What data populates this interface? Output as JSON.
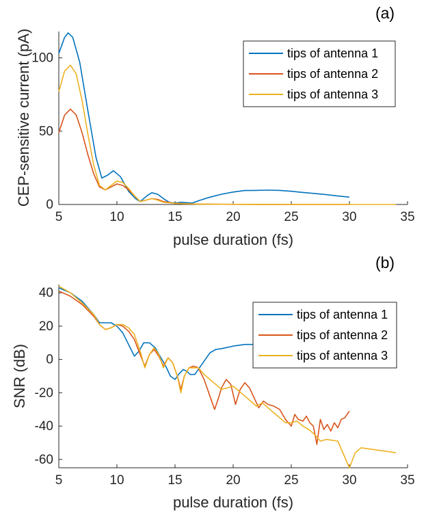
{
  "chart_data": [
    {
      "type": "line",
      "panel_label": "(a)",
      "title": "",
      "xlabel": "pulse duration (fs)",
      "ylabel": "CEP-sensitive current (pA)",
      "xlim": [
        5,
        35
      ],
      "ylim": [
        0,
        118
      ],
      "xticks": [
        5,
        10,
        15,
        20,
        25,
        30,
        35
      ],
      "yticks": [
        0,
        50,
        100
      ],
      "grid": false,
      "legend_position": "top-right",
      "series": [
        {
          "name": "tips of antenna 1",
          "color": "#0072BD",
          "x": [
            5.0,
            5.5,
            5.8,
            6.2,
            6.8,
            7.5,
            8.2,
            8.7,
            9.2,
            9.7,
            10.3,
            11.0,
            11.6,
            12.0,
            12.6,
            13.0,
            13.5,
            14.0,
            14.5,
            15.0,
            15.5,
            16.0,
            16.5,
            17.0,
            18.0,
            19.0,
            20.0,
            21.0,
            22.0,
            23.0,
            24.0,
            25.0,
            26.0,
            27.0,
            28.0,
            29.0,
            30.0
          ],
          "y": [
            103,
            114,
            117,
            114,
            97,
            64,
            32,
            18,
            20,
            23,
            19,
            9,
            4,
            2,
            6,
            8,
            7,
            4,
            1.5,
            1,
            1.5,
            1.2,
            1,
            2.5,
            5,
            7,
            8.5,
            9.5,
            9.6,
            9.8,
            9.6,
            9,
            8.2,
            7.5,
            6.7,
            5.8,
            5
          ]
        },
        {
          "name": "tips of antenna 2",
          "color": "#D95319",
          "x": [
            5.0,
            5.5,
            6.0,
            6.5,
            7.0,
            7.5,
            8.0,
            8.5,
            9.0,
            9.5,
            10.0,
            10.5,
            11.0,
            11.5,
            12.0,
            12.5,
            13.0,
            13.5,
            14.0,
            15.0,
            16.0,
            17.0,
            18.0,
            20.0,
            25.0,
            30.0
          ],
          "y": [
            49,
            61,
            65,
            61,
            49,
            34,
            21,
            12,
            10,
            12,
            14,
            13,
            10,
            6,
            2,
            3,
            4,
            3.5,
            2,
            0.8,
            0.5,
            0.3,
            0.2,
            0.1,
            0,
            0
          ]
        },
        {
          "name": "tips of antenna 3",
          "color": "#EDB120",
          "x": [
            5.0,
            5.5,
            6.0,
            6.5,
            7.0,
            7.5,
            8.0,
            8.5,
            9.0,
            9.5,
            10.0,
            10.5,
            11.0,
            11.5,
            12.0,
            12.5,
            13.0,
            13.5,
            14.0,
            15.0,
            16.0,
            17.0,
            18.0,
            20.0,
            25.0,
            30.0,
            34.0
          ],
          "y": [
            77,
            91,
            95,
            89,
            71,
            48,
            27,
            13,
            10,
            13,
            16,
            15,
            11,
            6,
            2,
            3,
            4,
            3,
            1.5,
            0.8,
            0.4,
            0.3,
            0.2,
            0.1,
            0,
            0,
            0
          ]
        }
      ]
    },
    {
      "type": "line",
      "panel_label": "(b)",
      "title": "",
      "xlabel": "pulse duration (fs)",
      "ylabel": "SNR (dB)",
      "xlim": [
        5,
        35
      ],
      "ylim": [
        -65,
        45
      ],
      "xticks": [
        5,
        10,
        15,
        20,
        25,
        30,
        35
      ],
      "yticks": [
        -60,
        -40,
        -20,
        0,
        20,
        40
      ],
      "grid": false,
      "legend_position": "top-right",
      "series": [
        {
          "name": "tips of antenna 1",
          "color": "#0072BD",
          "x": [
            5.0,
            6.0,
            7.0,
            8.0,
            8.5,
            9.0,
            9.5,
            10.0,
            10.5,
            11.0,
            11.5,
            11.9,
            12.3,
            12.8,
            13.3,
            13.7,
            14.2,
            14.6,
            15.0,
            15.3,
            15.7,
            16.0,
            16.3,
            16.7,
            17.0,
            17.5,
            18.0,
            18.5,
            19.0,
            20.0,
            21.0,
            22.0,
            23.0,
            24.0,
            25.0,
            26.0,
            27.0,
            28.0,
            29.0,
            30.0
          ],
          "y": [
            43,
            40,
            35,
            27,
            22,
            22,
            22,
            20,
            16,
            9,
            2,
            5,
            10,
            10,
            7,
            2,
            -4,
            -10,
            -12,
            -9,
            -6,
            -7,
            -9,
            -9,
            -6,
            -1,
            4,
            6,
            6.5,
            8,
            9,
            9,
            8.5,
            8,
            7.5,
            6.5,
            5,
            4,
            2.5,
            0.5
          ]
        },
        {
          "name": "tips of antenna 2",
          "color": "#D95319",
          "x": [
            5.0,
            6.0,
            7.0,
            8.0,
            8.5,
            9.0,
            9.5,
            10.0,
            10.5,
            11.0,
            11.5,
            12.0,
            12.4,
            12.8,
            13.2,
            13.6,
            14.0,
            14.4,
            14.8,
            15.2,
            15.5,
            15.8,
            16.2,
            16.6,
            17.0,
            17.5,
            18.0,
            18.4,
            18.7,
            19.0,
            19.4,
            19.8,
            20.2,
            20.6,
            21.0,
            21.4,
            21.8,
            22.2,
            22.6,
            23.0,
            23.5,
            24.0,
            24.5,
            25.0,
            25.3,
            25.6,
            26.0,
            26.3,
            26.6,
            26.9,
            27.2,
            27.5,
            27.8,
            28.1,
            28.4,
            28.7,
            29.0,
            29.3,
            29.6,
            30.0
          ],
          "y": [
            41,
            38,
            33,
            26,
            21,
            18,
            19,
            21,
            20,
            17,
            12,
            3,
            -4,
            3,
            6,
            2,
            -4,
            1,
            -2,
            -10,
            -18,
            -10,
            -5,
            -4,
            -5,
            -12,
            -22,
            -30,
            -24,
            -17,
            -12,
            -15,
            -27,
            -18,
            -14,
            -17,
            -23,
            -29,
            -25,
            -27,
            -28,
            -30,
            -36,
            -40,
            -33,
            -36,
            -37,
            -34,
            -38,
            -40,
            -51,
            -36,
            -42,
            -39,
            -43,
            -38,
            -41,
            -36,
            -35,
            -31
          ]
        },
        {
          "name": "tips of antenna 3",
          "color": "#EDB120",
          "x": [
            5.0,
            6.0,
            7.0,
            8.0,
            8.5,
            9.0,
            9.5,
            10.0,
            10.5,
            11.0,
            11.5,
            12.0,
            12.4,
            12.8,
            13.2,
            13.6,
            14.0,
            14.4,
            14.8,
            15.2,
            15.5,
            15.8,
            16.2,
            16.6,
            17.0,
            17.5,
            18.0,
            18.5,
            19.0,
            19.5,
            20.0,
            20.5,
            21.0,
            21.5,
            22.0,
            22.5,
            23.0,
            23.5,
            24.0,
            24.5,
            25.0,
            25.5,
            26.0,
            26.5,
            27.0,
            27.5,
            28.0,
            29.0,
            30.0,
            30.5,
            31.0,
            32.0,
            33.0,
            34.0
          ],
          "y": [
            44,
            40,
            34,
            27,
            21,
            18,
            19,
            21,
            21,
            19,
            15,
            5,
            -5,
            3,
            7,
            3,
            -5,
            1,
            -2,
            -10,
            -20,
            -10,
            -5,
            -5,
            -5,
            -9,
            -12,
            -15,
            -18,
            -17,
            -16,
            -19,
            -22,
            -25,
            -28,
            -26,
            -29,
            -32,
            -35,
            -38,
            -38,
            -37,
            -40,
            -42,
            -45,
            -49,
            -48,
            -49,
            -65,
            -56,
            -53,
            -54,
            -55,
            -56
          ]
        }
      ]
    }
  ]
}
